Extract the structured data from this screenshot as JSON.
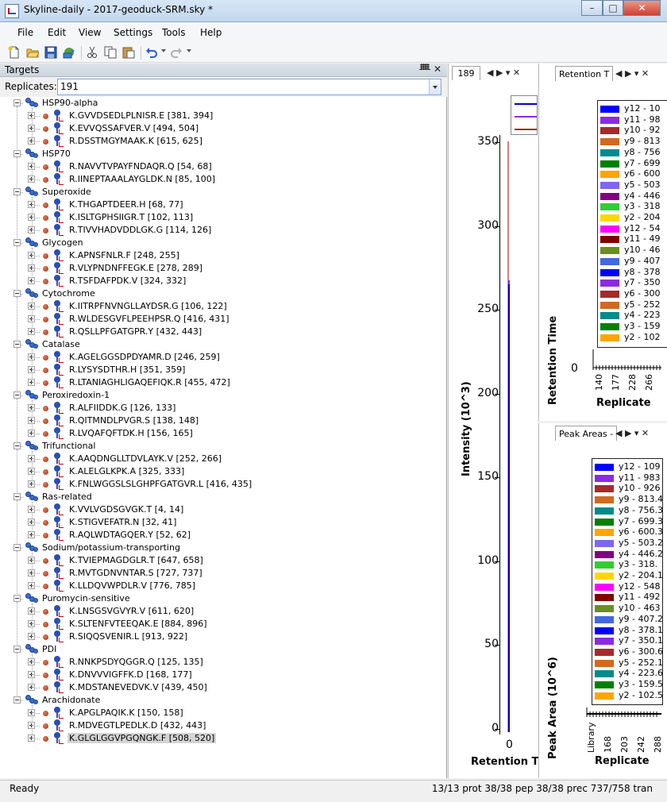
{
  "window": {
    "title": "Skyline-daily - 2017-geoduck-SRM.sky *",
    "minimize": "–",
    "maximize": "□",
    "close": "✕"
  },
  "menu": [
    "File",
    "Edit",
    "View",
    "Settings",
    "Tools",
    "Help"
  ],
  "toolbar": [
    "new-icon",
    "open-icon",
    "save-icon",
    "publish-icon",
    "cut-icon",
    "copy-icon",
    "paste-icon",
    "undo-icon",
    "redo-icon"
  ],
  "targets": {
    "title": "Targets",
    "pin": "ᚙ",
    "close": "✕",
    "replicates_label": "Replicates:",
    "replicates_value": "191",
    "proteins": [
      {
        "name": "HSP90-alpha",
        "peptides": [
          "K.GVVDSEDLPLNISR.E [381, 394]",
          "K.EVVQSSAFVER.V [494, 504]",
          "R.DSSTMGYMAAK.K [615, 625]"
        ]
      },
      {
        "name": "HSP70",
        "peptides": [
          "R.NAVVTVPAYFNDAQR.Q [54, 68]",
          "R.IINEPTAAALAYGLDK.N [85, 100]"
        ]
      },
      {
        "name": "Superoxide",
        "peptides": [
          "K.THGAPTDEER.H [68, 77]",
          "K.ISLTGPHSIIGR.T [102, 113]",
          "R.TIVVHADVDDLGK.G [114, 126]"
        ]
      },
      {
        "name": "Glycogen",
        "peptides": [
          "K.APNSFNLR.F [248, 255]",
          "R.VLYPNDNFFEGK.E [278, 289]",
          "R.TSFDAFPDK.V [324, 332]"
        ]
      },
      {
        "name": "Cytochrome",
        "peptides": [
          "K.IITRPFNVNGLLAYDSR.G [106, 122]",
          "R.WLDESGVFLPEEHPSR.Q [416, 431]",
          "R.QSLLPFGATGPR.Y [432, 443]"
        ]
      },
      {
        "name": "Catalase",
        "peptides": [
          "K.AGELGGSDPDYAMR.D [246, 259]",
          "R.LYSYSDTHR.H [351, 359]",
          "R.LTANIAGHLIGAQEFIQK.R [455, 472]"
        ]
      },
      {
        "name": "Peroxiredoxin-1",
        "peptides": [
          "R.ALFIIDDK.G [126, 133]",
          "R.QITMNDLPVGR.S [138, 148]",
          "R.LVQAFQFTDK.H [156, 165]"
        ]
      },
      {
        "name": "Trifunctional",
        "peptides": [
          "K.AAQDNGLLTDVLAYK.V [252, 266]",
          "K.ALELGLKPK.A [325, 333]",
          "K.FNLWGGSLSLGHPFGATGVR.L [416, 435]"
        ]
      },
      {
        "name": "Ras-related",
        "peptides": [
          "K.VVLVGDSGVGK.T [4, 14]",
          "K.STIGVEFATR.N [32, 41]",
          "R.AQLWDTAGQER.Y [52, 62]"
        ]
      },
      {
        "name": "Sodium/potassium-transporting",
        "peptides": [
          "K.TVIEPMAGDGLR.T [647, 658]",
          "R.MVTGDNVNTAR.S [727, 737]",
          "K.LLDQVWPDLR.V [776, 785]"
        ]
      },
      {
        "name": "Puromycin-sensitive",
        "peptides": [
          "K.LNSGSVGVYR.V [611, 620]",
          "K.SLTENFVTEEQAK.E [884, 896]",
          "R.SIQQSVENIR.L [913, 922]"
        ]
      },
      {
        "name": "PDI",
        "peptides": [
          "R.NNKPSDYQGGR.Q [125, 135]",
          "K.DNVVVIGFFK.D [168, 177]",
          "K.MDSTANEVEDVK.V [439, 450]"
        ]
      },
      {
        "name": "Arachidonate",
        "peptides": [
          "K.APGLPAQIK.K [150, 158]",
          "R.MDVEGTLPEDLK.D [432, 443]",
          "K.GLGLGGVPGQNGK.F [508, 520]"
        ]
      }
    ]
  },
  "chromatogram": {
    "tab": "189",
    "nav": "◀ ▶ ▾ ✕",
    "ylabel": "Intensity (10^3)",
    "xlabel": "Retention T",
    "yticks": [
      "350",
      "300",
      "250",
      "200",
      "150",
      "100",
      "50",
      "0"
    ],
    "xticks": [
      "0"
    ]
  },
  "retention_time": {
    "tab": "Retention T",
    "nav": "◀ ▶ ▾ ✕",
    "ylabel": "Retention Time",
    "xlabel": "Replicate",
    "y0": "0",
    "xticks": [
      "140",
      "177",
      "228",
      "266"
    ],
    "legend": [
      {
        "label": "y12 - 10",
        "color": "#0000ff"
      },
      {
        "label": "y11 - 98",
        "color": "#8a2be2"
      },
      {
        "label": "y10 - 92",
        "color": "#a52a2a"
      },
      {
        "label": "y9 - 813",
        "color": "#d2691e"
      },
      {
        "label": "y8 - 756",
        "color": "#008b8b"
      },
      {
        "label": "y7 - 699",
        "color": "#008000"
      },
      {
        "label": "y6 - 600",
        "color": "#ffa500"
      },
      {
        "label": "y5 - 503",
        "color": "#7b68ee"
      },
      {
        "label": "y4 - 446",
        "color": "#800080"
      },
      {
        "label": "y3 - 318",
        "color": "#32cd32"
      },
      {
        "label": "y2 - 204",
        "color": "#ffd700"
      },
      {
        "label": "y12 - 54",
        "color": "#ff00ff"
      },
      {
        "label": "y11 - 49",
        "color": "#800000"
      },
      {
        "label": "y10 - 46",
        "color": "#6b8e23"
      },
      {
        "label": "y9 - 407",
        "color": "#4169e1"
      },
      {
        "label": "y8 - 378",
        "color": "#0000ff"
      },
      {
        "label": "y7 - 350",
        "color": "#8a2be2"
      },
      {
        "label": "y6 - 300",
        "color": "#a52a2a"
      },
      {
        "label": "y5 - 252",
        "color": "#d2691e"
      },
      {
        "label": "y4 - 223",
        "color": "#008b8b"
      },
      {
        "label": "y3 - 159",
        "color": "#008000"
      },
      {
        "label": "y2 - 102",
        "color": "#ffa500"
      }
    ]
  },
  "peak_areas": {
    "tab": "Peak Areas -",
    "nav": "◀ ▶ ▾ ✕",
    "ylabel": "Peak Area (10^6)",
    "xlabel": "Replicate",
    "xticks": [
      "Library",
      "168",
      "203",
      "242",
      "288"
    ],
    "legend": [
      {
        "label": "y12 - 109",
        "color": "#0000ff"
      },
      {
        "label": "y11 - 983",
        "color": "#8a2be2"
      },
      {
        "label": "y10 - 926",
        "color": "#a52a2a"
      },
      {
        "label": "y9 - 813.4",
        "color": "#d2691e"
      },
      {
        "label": "y8 - 756.3",
        "color": "#008b8b"
      },
      {
        "label": "y7 - 699.3",
        "color": "#008000"
      },
      {
        "label": "y6 - 600.3",
        "color": "#ffa500"
      },
      {
        "label": "y5 - 503.2",
        "color": "#7b68ee"
      },
      {
        "label": "y4 - 446.2",
        "color": "#800080"
      },
      {
        "label": "y3 - 318.",
        "color": "#32cd32"
      },
      {
        "label": "y2 - 204.1",
        "color": "#ffd700"
      },
      {
        "label": "y12 - 548",
        "color": "#ff00ff"
      },
      {
        "label": "y11 - 492",
        "color": "#800000"
      },
      {
        "label": "y10 - 463",
        "color": "#6b8e23"
      },
      {
        "label": "y9 - 407.2",
        "color": "#4169e1"
      },
      {
        "label": "y8 - 378.1",
        "color": "#0000ff"
      },
      {
        "label": "y7 - 350.1",
        "color": "#8a2be2"
      },
      {
        "label": "y6 - 300.6",
        "color": "#a52a2a"
      },
      {
        "label": "y5 - 252.1",
        "color": "#d2691e"
      },
      {
        "label": "y4 - 223.6",
        "color": "#008b8b"
      },
      {
        "label": "y3 - 159.5",
        "color": "#008000"
      },
      {
        "label": "y2 - 102.5",
        "color": "#ffa500"
      }
    ]
  },
  "status": {
    "text": "Ready",
    "counts": "13/13 prot   38/38 pep   38/38 prec   737/758 tran"
  }
}
